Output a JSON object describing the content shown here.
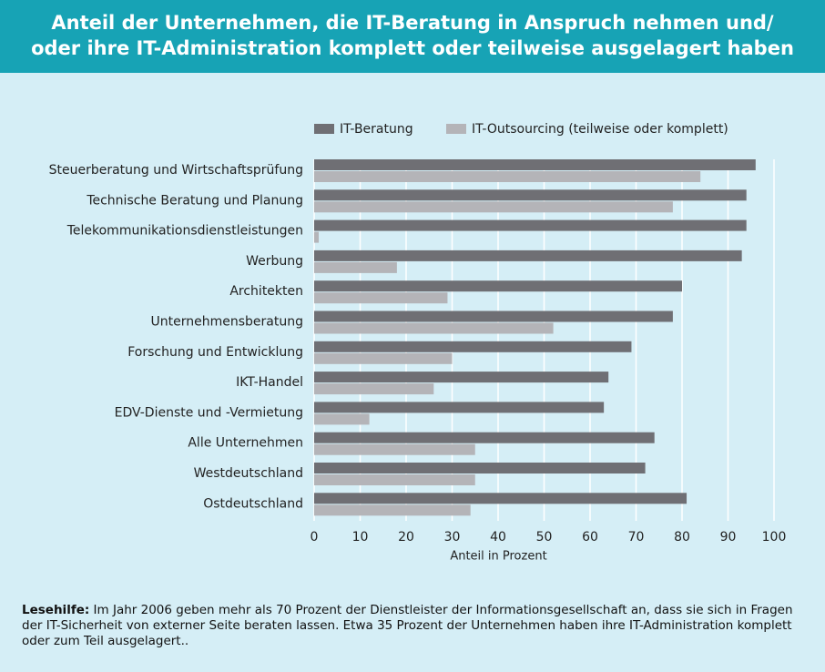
{
  "chart_data": {
    "type": "hbar",
    "title": [
      "Anteil der Unternehmen, die IT-Beratung in Anspruch nehmen und/",
      "oder ihre IT-Administration komplett oder teilweise ausgelagert haben"
    ],
    "categories": [
      "Steuerberatung und Wirtschaftsprüfung",
      "Technische Beratung und Planung",
      "Telekommunikationsdienstleistungen",
      "Werbung",
      "Architekten",
      "Unternehmensberatung",
      "Forschung und Entwicklung",
      "IKT-Handel",
      "EDV-Dienste und -Vermietung",
      "Alle Unternehmen",
      "Westdeutschland",
      "Ostdeutschland"
    ],
    "series": [
      {
        "name": "IT-Beratung",
        "color": "#6f6f74",
        "values": [
          96,
          94,
          94,
          93,
          80,
          78,
          69,
          64,
          63,
          74,
          72,
          81
        ]
      },
      {
        "name": "IT-Outsourcing (teilweise oder komplett)",
        "color": "#b4b4b8",
        "values": [
          84,
          78,
          1,
          18,
          29,
          52,
          30,
          26,
          12,
          35,
          35,
          34
        ]
      }
    ],
    "xlim": [
      0,
      100
    ],
    "xticks": [
      0,
      10,
      20,
      30,
      40,
      50,
      60,
      70,
      80,
      90,
      100
    ],
    "xlabel": "Anteil in Prozent",
    "grid": true,
    "legend": "top",
    "note": {
      "lead": "Lesehilfe:",
      "text": "Im Jahr 2006 geben mehr als 70 Prozent der Dienstleister der Informationsgesellschaft an, dass sie sich in Fragen der IT-Sicherheit von externer Seite beraten lassen. Etwa 35 Prozent der Unternehmen haben ihre IT-Administration komplett oder zum Teil ausgelagert.."
    }
  }
}
